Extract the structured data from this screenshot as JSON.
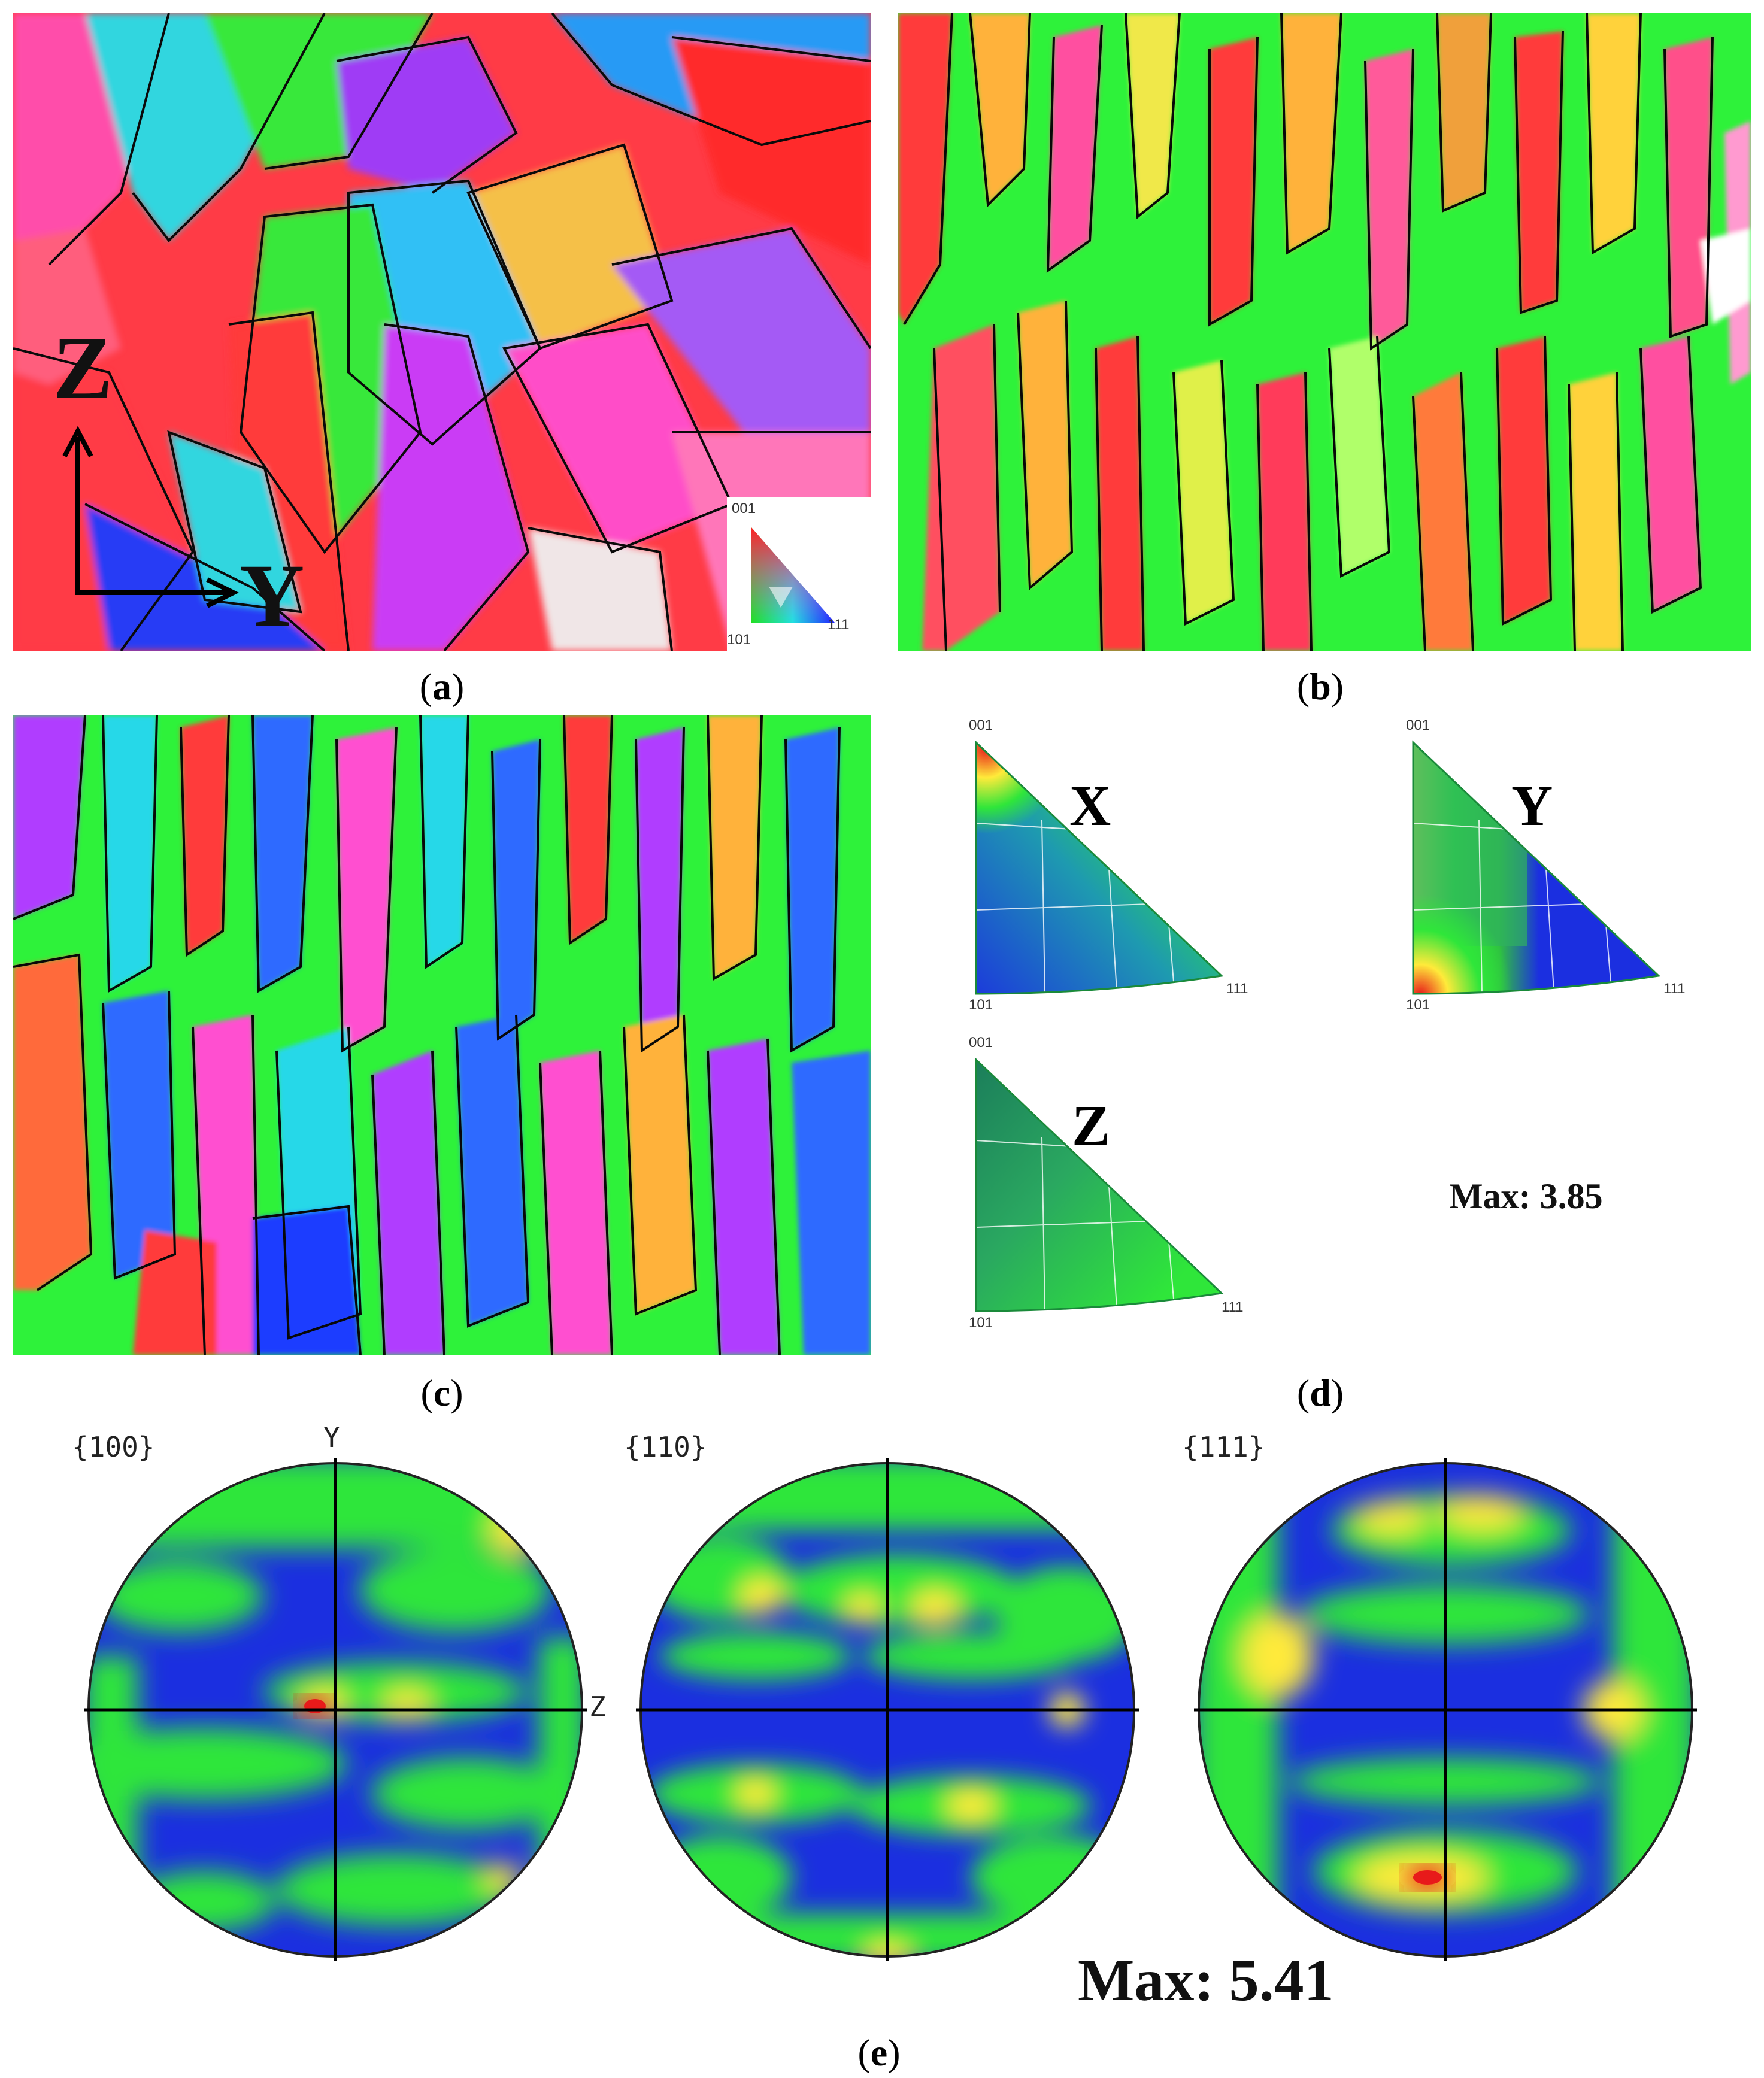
{
  "panel_a": {
    "caption_open": "(",
    "caption_letter": "a",
    "caption_close": ")",
    "axis_vertical": "Z",
    "axis_horizontal": "Y",
    "legend": {
      "top": "001",
      "bottom_left": "101",
      "bottom_right": "111"
    },
    "dominant_colors": [
      "#ff3b3b",
      "#25e63a",
      "#28d8e8",
      "#9a3cff",
      "#ff4fbf",
      "#f5c84a",
      "#1f3cff"
    ]
  },
  "panel_b": {
    "caption_open": "(",
    "caption_letter": "b",
    "caption_close": ")",
    "dominant_colors": [
      "#2ef23a",
      "#ff3b3b",
      "#ffb23a",
      "#ff5a9a",
      "#f0e84a",
      "#b0ff6a"
    ]
  },
  "panel_c": {
    "caption_open": "(",
    "caption_letter": "c",
    "caption_close": ")",
    "dominant_colors": [
      "#2ef23a",
      "#2f6bff",
      "#28d8e8",
      "#b03cff",
      "#ff4fd0",
      "#ff3b3b",
      "#ffb23a"
    ]
  },
  "panel_d": {
    "caption_open": "(",
    "caption_letter": "d",
    "caption_close": ")",
    "ipf_x": {
      "axis": "X",
      "top": "001",
      "bottom_left": "101",
      "bottom_right": "111"
    },
    "ipf_y": {
      "axis": "Y",
      "top": "001",
      "bottom_left": "101",
      "bottom_right": "111"
    },
    "ipf_z": {
      "axis": "Z",
      "top": "001",
      "bottom_left": "101",
      "bottom_right": "111"
    },
    "max_label": "Max: 3.85"
  },
  "panel_e": {
    "caption_open": "(",
    "caption_letter": "e",
    "caption_close": ")",
    "pf_100": {
      "title": "{100}",
      "axis_top": "Y",
      "axis_right": "Z"
    },
    "pf_110": {
      "title": "{110}"
    },
    "pf_111": {
      "title": "{111}"
    },
    "max_label": "Max: 5.41"
  },
  "colormap": {
    "low": "#1b2fe0",
    "mid": "#2fe63a",
    "high": "#e81a1a",
    "peak": "#ffea3a"
  }
}
